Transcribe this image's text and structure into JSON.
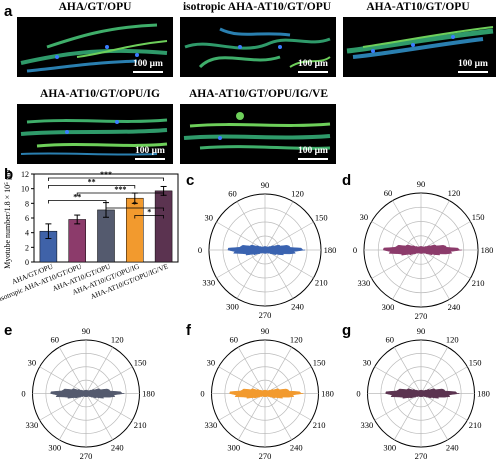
{
  "panels": {
    "a": {
      "label": "a"
    },
    "b": {
      "label": "b"
    },
    "c": {
      "label": "c"
    },
    "d": {
      "label": "d"
    },
    "e": {
      "label": "e"
    },
    "f": {
      "label": "f"
    },
    "g": {
      "label": "g"
    }
  },
  "micrographs": [
    {
      "title": "AHA/GT/OPU",
      "scale": "100 μm"
    },
    {
      "title": "isotropic AHA-AT10/GT/OPU",
      "scale": "100 μm"
    },
    {
      "title": "AHA-AT10/GT/OPU",
      "scale": "100 μm"
    },
    {
      "title": "AHA-AT10/GT/OPU/IG",
      "scale": "100 μm"
    },
    {
      "title": "AHA-AT10/GT/OPU/IG/VE",
      "scale": "100 μm"
    }
  ],
  "chart_data": {
    "type": "bar",
    "ylabel": "Myotube number/1.8 × 10⁵ μm²",
    "ylim": [
      0,
      12
    ],
    "yticks": [
      0,
      2,
      4,
      6,
      8,
      10,
      12
    ],
    "categories": [
      "AHA/GT/OPU",
      "isotropic AHA-AT10/GT/OPU",
      "AHA-AT10/GT/OPU",
      "AHA-AT10/GT/OPU/IG",
      "AHA-AT10/GT/OPU/IG/VE"
    ],
    "values": [
      4.2,
      5.8,
      7.1,
      8.7,
      9.7
    ],
    "errors": [
      1.0,
      0.6,
      1.0,
      0.7,
      0.6
    ],
    "colors": [
      "#3f62a8",
      "#8c3b6b",
      "#545a6e",
      "#f29a2e",
      "#5b3350"
    ],
    "significance": [
      "***",
      "*",
      "**",
      "***",
      "**",
      "*"
    ]
  },
  "polar_plots": [
    {
      "label": "c",
      "color": "#3a63b0",
      "ticks": [
        "90",
        "120",
        "150",
        "180",
        "210",
        "240",
        "270",
        "300",
        "330",
        "0",
        "30",
        "60"
      ]
    },
    {
      "label": "d",
      "color": "#8c3b6b",
      "ticks": [
        "90",
        "120",
        "150",
        "180",
        "210",
        "240",
        "270",
        "300",
        "330",
        "0",
        "30",
        "60"
      ]
    },
    {
      "label": "e",
      "color": "#545a6e",
      "ticks": [
        "90",
        "120",
        "150",
        "180",
        "210",
        "240",
        "270",
        "300",
        "330",
        "0",
        "30",
        "60"
      ]
    },
    {
      "label": "f",
      "color": "#f29a2e",
      "ticks": [
        "90",
        "120",
        "150",
        "180",
        "210",
        "240",
        "270",
        "300",
        "330",
        "0",
        "30",
        "60"
      ]
    },
    {
      "label": "g",
      "color": "#5b3350",
      "ticks": [
        "90",
        "120",
        "150",
        "180",
        "210",
        "240",
        "270",
        "300",
        "330",
        "0",
        "30",
        "60"
      ]
    }
  ]
}
